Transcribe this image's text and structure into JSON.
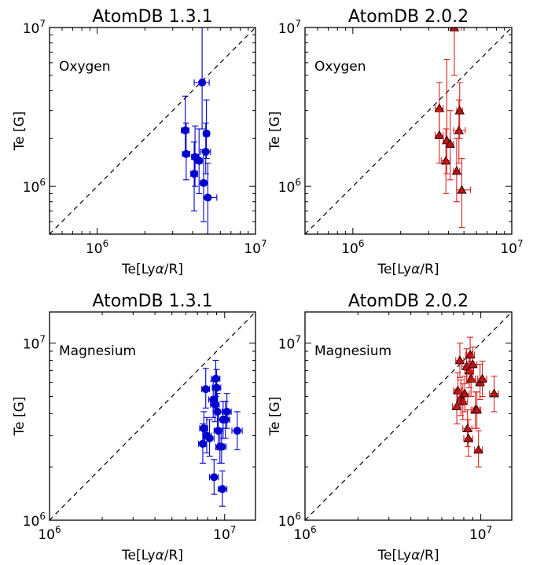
{
  "colors": {
    "series_1": "#0000cc",
    "series_2": "#dd2222",
    "marker_2_fill": "#bb1111",
    "diag": "#000000"
  },
  "chart_data": [
    {
      "type": "scatter",
      "title": "AtomDB 1.3.1",
      "element": "Oxygen",
      "xlabel": "Te[Lyα/R]",
      "ylabel": "Te [G]",
      "xscale": "log",
      "yscale": "log",
      "xlim": [
        500000,
        10000000
      ],
      "ylim": [
        500000,
        10000000
      ],
      "xtick_labels": [
        {
          "base": "10",
          "exp": "6",
          "value": 1000000
        },
        {
          "base": "10",
          "exp": "7",
          "value": 10000000
        }
      ],
      "ytick_labels": [
        {
          "base": "10",
          "exp": "6",
          "value": 1000000
        },
        {
          "base": "10",
          "exp": "7",
          "value": 10000000
        }
      ],
      "diagonal": true,
      "marker": "circle",
      "color": "#0000cc",
      "points": [
        {
          "x": 3600000,
          "y": 2250000,
          "xerr": [
            3400000,
            3800000
          ],
          "yerr": [
            1600000,
            3700000
          ]
        },
        {
          "x": 3650000,
          "y": 1600000,
          "xerr": [
            3450000,
            3850000
          ],
          "yerr": [
            1100000,
            2500000
          ]
        },
        {
          "x": 4100000,
          "y": 1200000,
          "xerr": [
            3900000,
            4300000
          ],
          "yerr": [
            700000,
            1900000
          ]
        },
        {
          "x": 4150000,
          "y": 1530000,
          "xerr": [
            3950000,
            4350000
          ],
          "yerr": [
            1000000,
            2400000
          ]
        },
        {
          "x": 4400000,
          "y": 1450000,
          "xerr": [
            4200000,
            4600000
          ],
          "yerr": [
            900000,
            2300000
          ]
        },
        {
          "x": 4600000,
          "y": 4500000,
          "xerr": [
            4100000,
            5100000
          ],
          "yerr": [
            2300000,
            10000000
          ]
        },
        {
          "x": 4700000,
          "y": 1050000,
          "xerr": [
            4500000,
            4900000
          ],
          "yerr": [
            600000,
            1700000
          ]
        },
        {
          "x": 4850000,
          "y": 1650000,
          "xerr": [
            4500000,
            5200000
          ],
          "yerr": [
            1200000,
            2500000
          ]
        },
        {
          "x": 4900000,
          "y": 2150000,
          "xerr": [
            4700000,
            5100000
          ],
          "yerr": [
            1500000,
            3500000
          ]
        },
        {
          "x": 5000000,
          "y": 850000,
          "xerr": [
            4700000,
            5700000
          ],
          "yerr": [
            500000,
            1400000
          ]
        }
      ]
    },
    {
      "type": "scatter",
      "title": "AtomDB 2.0.2",
      "element": "Oxygen",
      "xlabel": "Te[Lyα/R]",
      "ylabel": "Te [G]",
      "xscale": "log",
      "yscale": "log",
      "xlim": [
        500000,
        10000000
      ],
      "ylim": [
        500000,
        10000000
      ],
      "xtick_labels": [
        {
          "base": "10",
          "exp": "6",
          "value": 1000000
        },
        {
          "base": "10",
          "exp": "7",
          "value": 10000000
        }
      ],
      "ytick_labels": [
        {
          "base": "10",
          "exp": "6",
          "value": 1000000
        },
        {
          "base": "10",
          "exp": "7",
          "value": 10000000
        }
      ],
      "diagonal": true,
      "marker": "triangle",
      "color": "#dd2222",
      "points": [
        {
          "x": 3500000,
          "y": 3100000,
          "xerr": [
            3300000,
            3700000
          ],
          "yerr": [
            2000000,
            4500000
          ]
        },
        {
          "x": 3500000,
          "y": 2100000,
          "xerr": [
            3300000,
            3700000
          ],
          "yerr": [
            1400000,
            3000000
          ]
        },
        {
          "x": 3850000,
          "y": 1450000,
          "xerr": [
            3600000,
            4100000
          ],
          "yerr": [
            900000,
            2300000
          ]
        },
        {
          "x": 3900000,
          "y": 1950000,
          "xerr": [
            3700000,
            4100000
          ],
          "yerr": [
            1200000,
            6300000
          ]
        },
        {
          "x": 4100000,
          "y": 1850000,
          "xerr": [
            3900000,
            4300000
          ],
          "yerr": [
            1100000,
            3000000
          ]
        },
        {
          "x": 4350000,
          "y": 10000000,
          "xerr": [
            4100000,
            4800000
          ],
          "yerr": [
            5000000,
            10000000
          ]
        },
        {
          "x": 4500000,
          "y": 1250000,
          "xerr": [
            4300000,
            4700000
          ],
          "yerr": [
            800000,
            2000000
          ]
        },
        {
          "x": 4650000,
          "y": 2250000,
          "xerr": [
            4300000,
            5100000
          ],
          "yerr": [
            1400000,
            3500000
          ]
        },
        {
          "x": 4700000,
          "y": 3000000,
          "xerr": [
            4500000,
            4900000
          ],
          "yerr": [
            2000000,
            4500000
          ]
        },
        {
          "x": 4850000,
          "y": 950000,
          "xerr": [
            4500000,
            5500000
          ],
          "yerr": [
            550000,
            1500000
          ]
        }
      ]
    },
    {
      "type": "scatter",
      "title": "AtomDB 1.3.1",
      "element": "Magnesium",
      "xlabel": "Te[Lyα/R]",
      "ylabel": "Te [G]",
      "xscale": "log",
      "yscale": "log",
      "xlim": [
        1000000,
        15000000
      ],
      "ylim": [
        1000000,
        15000000
      ],
      "xtick_labels": [
        {
          "base": "10",
          "exp": "6",
          "value": 1000000
        },
        {
          "base": "10",
          "exp": "7",
          "value": 10000000
        }
      ],
      "ytick_labels": [
        {
          "base": "10",
          "exp": "6",
          "value": 1000000
        },
        {
          "base": "10",
          "exp": "7",
          "value": 10000000
        }
      ],
      "diagonal": true,
      "marker": "circle",
      "color": "#0000cc",
      "points": [
        {
          "x": 7500000,
          "y": 2700000,
          "xerr": [
            7100000,
            7900000
          ],
          "yerr": [
            2100000,
            3500000
          ]
        },
        {
          "x": 7600000,
          "y": 3300000,
          "xerr": [
            7200000,
            8000000
          ],
          "yerr": [
            2600000,
            4100000
          ]
        },
        {
          "x": 7800000,
          "y": 5500000,
          "xerr": [
            7400000,
            8200000
          ],
          "yerr": [
            4300000,
            7200000
          ]
        },
        {
          "x": 7900000,
          "y": 3000000,
          "xerr": [
            7500000,
            8400000
          ],
          "yerr": [
            2400000,
            3800000
          ]
        },
        {
          "x": 8200000,
          "y": 2900000,
          "xerr": [
            7700000,
            8700000
          ],
          "yerr": [
            2300000,
            3700000
          ]
        },
        {
          "x": 8600000,
          "y": 4800000,
          "xerr": [
            8100000,
            9100000
          ],
          "yerr": [
            3800000,
            6100000
          ]
        },
        {
          "x": 8700000,
          "y": 1750000,
          "xerr": [
            8200000,
            9200000
          ],
          "yerr": [
            1400000,
            2200000
          ]
        },
        {
          "x": 8800000,
          "y": 4500000,
          "xerr": [
            8300000,
            9300000
          ],
          "yerr": [
            3600000,
            5700000
          ]
        },
        {
          "x": 8900000,
          "y": 6300000,
          "xerr": [
            8400000,
            9400000
          ],
          "yerr": [
            5000000,
            8000000
          ]
        },
        {
          "x": 9000000,
          "y": 5600000,
          "xerr": [
            8500000,
            9500000
          ],
          "yerr": [
            4400000,
            7100000
          ]
        },
        {
          "x": 9100000,
          "y": 4100000,
          "xerr": [
            8600000,
            9700000
          ],
          "yerr": [
            3300000,
            5200000
          ]
        },
        {
          "x": 9200000,
          "y": 3200000,
          "xerr": [
            8700000,
            9800000
          ],
          "yerr": [
            2500000,
            4100000
          ]
        },
        {
          "x": 9400000,
          "y": 2600000,
          "xerr": [
            8900000,
            10000000
          ],
          "yerr": [
            2100000,
            3300000
          ]
        },
        {
          "x": 9600000,
          "y": 2600000,
          "xerr": [
            9100000,
            10200000
          ],
          "yerr": [
            2100000,
            3300000
          ]
        },
        {
          "x": 9700000,
          "y": 1500000,
          "xerr": [
            9200000,
            10300000
          ],
          "yerr": [
            1200000,
            1900000
          ]
        },
        {
          "x": 9800000,
          "y": 3700000,
          "xerr": [
            9200000,
            10400000
          ],
          "yerr": [
            2900000,
            4700000
          ]
        },
        {
          "x": 10100000,
          "y": 3700000,
          "xerr": [
            9500000,
            10700000
          ],
          "yerr": [
            2900000,
            4700000
          ]
        },
        {
          "x": 10300000,
          "y": 4100000,
          "xerr": [
            9700000,
            10900000
          ],
          "yerr": [
            3300000,
            5200000
          ]
        },
        {
          "x": 11800000,
          "y": 3200000,
          "xerr": [
            11000000,
            12600000
          ],
          "yerr": [
            2500000,
            4100000
          ]
        }
      ]
    },
    {
      "type": "scatter",
      "title": "AtomDB 2.0.2",
      "element": "Magnesium",
      "xlabel": "Te[Lyα/R]",
      "ylabel": "Te [G]",
      "xscale": "log",
      "yscale": "log",
      "xlim": [
        1000000,
        15000000
      ],
      "ylim": [
        1000000,
        15000000
      ],
      "xtick_labels": [
        {
          "base": "10",
          "exp": "6",
          "value": 1000000
        },
        {
          "base": "10",
          "exp": "7",
          "value": 10000000
        }
      ],
      "ytick_labels": [
        {
          "base": "10",
          "exp": "6",
          "value": 1000000
        },
        {
          "base": "10",
          "exp": "7",
          "value": 10000000
        }
      ],
      "diagonal": true,
      "marker": "triangle",
      "color": "#dd2222",
      "points": [
        {
          "x": 7300000,
          "y": 4400000,
          "xerr": [
            6900000,
            7700000
          ],
          "yerr": [
            3500000,
            5500000
          ]
        },
        {
          "x": 7400000,
          "y": 5400000,
          "xerr": [
            7000000,
            7800000
          ],
          "yerr": [
            4300000,
            6800000
          ]
        },
        {
          "x": 7600000,
          "y": 8000000,
          "xerr": [
            7200000,
            8000000
          ],
          "yerr": [
            6400000,
            10000000
          ]
        },
        {
          "x": 7700000,
          "y": 4900000,
          "xerr": [
            7300000,
            8100000
          ],
          "yerr": [
            3900000,
            6200000
          ]
        },
        {
          "x": 7900000,
          "y": 4700000,
          "xerr": [
            7500000,
            8400000
          ],
          "yerr": [
            3700000,
            5900000
          ]
        },
        {
          "x": 8100000,
          "y": 5200000,
          "xerr": [
            7600000,
            8600000
          ],
          "yerr": [
            4100000,
            6500000
          ]
        },
        {
          "x": 8300000,
          "y": 7400000,
          "xerr": [
            7800000,
            8800000
          ],
          "yerr": [
            5900000,
            9300000
          ]
        },
        {
          "x": 8400000,
          "y": 3300000,
          "xerr": [
            7900000,
            8900000
          ],
          "yerr": [
            2600000,
            4200000
          ]
        },
        {
          "x": 8500000,
          "y": 2900000,
          "xerr": [
            8000000,
            9000000
          ],
          "yerr": [
            2300000,
            3700000
          ]
        },
        {
          "x": 8600000,
          "y": 7000000,
          "xerr": [
            8100000,
            9100000
          ],
          "yerr": [
            5600000,
            8800000
          ]
        },
        {
          "x": 8700000,
          "y": 8600000,
          "xerr": [
            8200000,
            9200000
          ],
          "yerr": [
            6900000,
            10800000
          ]
        },
        {
          "x": 8800000,
          "y": 6300000,
          "xerr": [
            8300000,
            9300000
          ],
          "yerr": [
            5000000,
            7900000
          ]
        },
        {
          "x": 9000000,
          "y": 7600000,
          "xerr": [
            8500000,
            9500000
          ],
          "yerr": [
            6100000,
            9500000
          ]
        },
        {
          "x": 9300000,
          "y": 4200000,
          "xerr": [
            8800000,
            9800000
          ],
          "yerr": [
            3300000,
            5300000
          ]
        },
        {
          "x": 9500000,
          "y": 4200000,
          "xerr": [
            9000000,
            10000000
          ],
          "yerr": [
            3300000,
            5300000
          ]
        },
        {
          "x": 9700000,
          "y": 2500000,
          "xerr": [
            9200000,
            10200000
          ],
          "yerr": [
            2000000,
            3200000
          ]
        },
        {
          "x": 9900000,
          "y": 6000000,
          "xerr": [
            9400000,
            10400000
          ],
          "yerr": [
            4800000,
            7600000
          ]
        },
        {
          "x": 10200000,
          "y": 6300000,
          "xerr": [
            9600000,
            10800000
          ],
          "yerr": [
            5000000,
            7900000
          ]
        },
        {
          "x": 11900000,
          "y": 5200000,
          "xerr": [
            11200000,
            12600000
          ],
          "yerr": [
            4100000,
            6500000
          ]
        }
      ]
    }
  ]
}
